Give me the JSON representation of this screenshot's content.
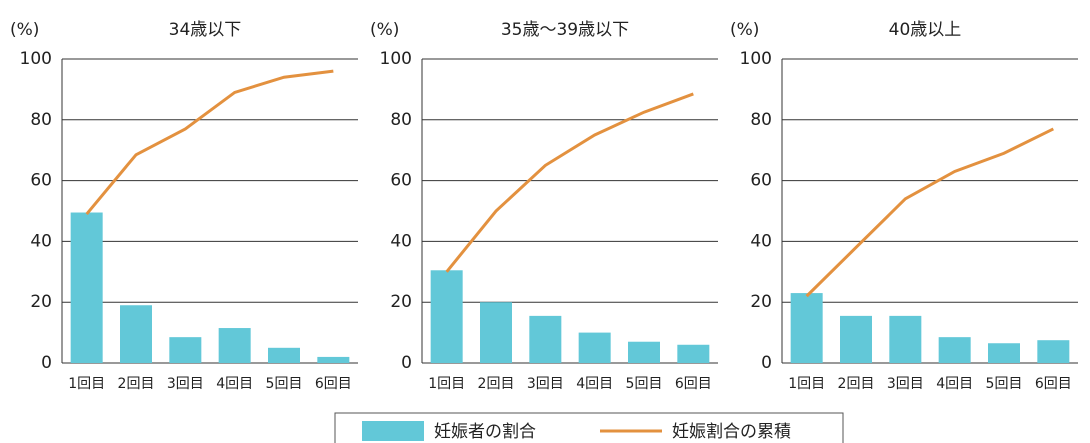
{
  "chart_data": [
    {
      "type": "bar",
      "title": "34歳以下",
      "y_label": "(%)",
      "categories": [
        "1回目",
        "2回目",
        "3回目",
        "4回目",
        "5回目",
        "6回目"
      ],
      "series": [
        {
          "type": "bar",
          "color": "#62c8d8",
          "values": [
            49.5,
            19,
            8.5,
            11.5,
            5,
            2
          ]
        },
        {
          "type": "line",
          "color": "#e3913f",
          "values": [
            49,
            68.5,
            77,
            89,
            94,
            96
          ]
        }
      ],
      "ylim": [
        0,
        100
      ],
      "yticks": [
        0,
        20,
        40,
        60,
        80,
        100
      ],
      "grid": true
    },
    {
      "type": "bar",
      "title": "35歳～39歳以下",
      "y_label": "(%)",
      "categories": [
        "1回目",
        "2回目",
        "3回目",
        "4回目",
        "5回目",
        "6回目"
      ],
      "series": [
        {
          "type": "bar",
          "color": "#62c8d8",
          "values": [
            30.5,
            20,
            15.5,
            10,
            7,
            6
          ]
        },
        {
          "type": "line",
          "color": "#e3913f",
          "values": [
            30,
            50,
            65,
            75,
            82.5,
            88.5
          ]
        }
      ],
      "ylim": [
        0,
        100
      ],
      "yticks": [
        0,
        20,
        40,
        60,
        80,
        100
      ],
      "grid": true
    },
    {
      "type": "bar",
      "title": "40歳以上",
      "y_label": "(%)",
      "categories": [
        "1回目",
        "2回目",
        "3回目",
        "4回目",
        "5回目",
        "6回目"
      ],
      "series": [
        {
          "type": "bar",
          "color": "#62c8d8",
          "values": [
            23,
            15.5,
            15.5,
            8.5,
            6.5,
            7.5
          ]
        },
        {
          "type": "line",
          "color": "#e3913f",
          "values": [
            22,
            38,
            54,
            63,
            69,
            77
          ]
        }
      ],
      "ylim": [
        0,
        100
      ],
      "yticks": [
        0,
        20,
        40,
        60,
        80,
        100
      ],
      "grid": true
    }
  ],
  "legend": [
    {
      "name": "妊娠者の割合",
      "color": "#62c8d8"
    },
    {
      "name": "妊娠割合の累積",
      "color": "#e3913f"
    }
  ]
}
